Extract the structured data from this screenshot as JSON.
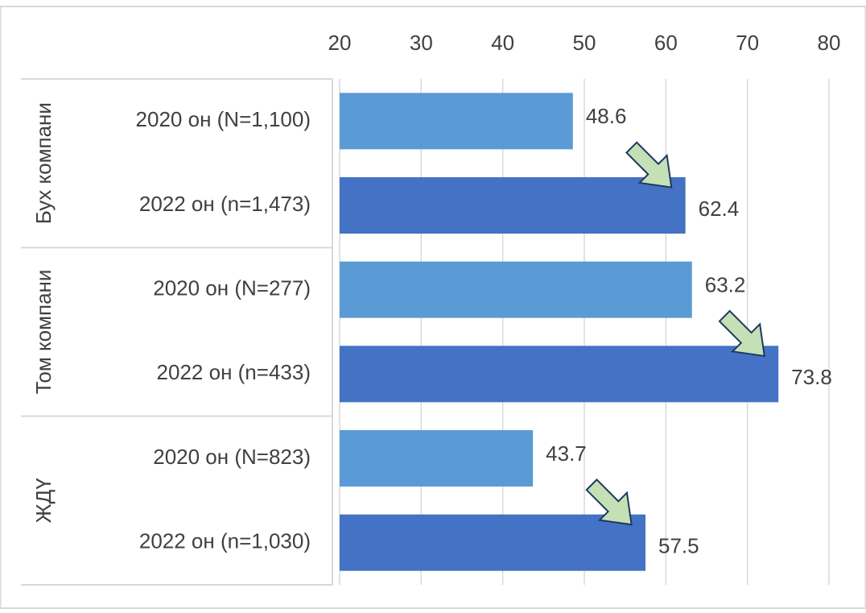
{
  "chart_data": {
    "type": "bar",
    "orientation": "horizontal",
    "xlim": [
      20,
      80
    ],
    "x_ticks": [
      "20",
      "30",
      "40",
      "50",
      "60",
      "70",
      "80"
    ],
    "grid": true,
    "groups": [
      {
        "label": "Бух компани",
        "rows": [
          {
            "label": "2020 он (N=1,100)",
            "value": 48.6,
            "value_label": "48.6",
            "year": "2020"
          },
          {
            "label": "2022 он (n=1,473)",
            "value": 62.4,
            "value_label": "62.4",
            "year": "2022"
          }
        ]
      },
      {
        "label": "Том компани",
        "rows": [
          {
            "label": "2020 он (N=277)",
            "value": 63.2,
            "value_label": "63.2",
            "year": "2020"
          },
          {
            "label": "2022 он (n=433)",
            "value": 73.8,
            "value_label": "73.8",
            "year": "2022"
          }
        ]
      },
      {
        "label": "ЖДҮ",
        "rows": [
          {
            "label": "2020 он (N=823)",
            "value": 43.7,
            "value_label": "43.7",
            "year": "2020"
          },
          {
            "label": "2022 он (n=1,030)",
            "value": 57.5,
            "value_label": "57.5",
            "year": "2022"
          }
        ]
      }
    ],
    "colors": {
      "bar_2020": "#5b9bd5",
      "bar_2022": "#4472c4",
      "arrow_fill": "#c5e0b4",
      "arrow_stroke": "#1f3864",
      "grid": "#d9d9d9",
      "text": "#404040"
    },
    "annotations": [
      {
        "type": "arrow-down-right",
        "group": 0
      },
      {
        "type": "arrow-down-right",
        "group": 1
      },
      {
        "type": "arrow-down-right",
        "group": 2
      }
    ]
  }
}
